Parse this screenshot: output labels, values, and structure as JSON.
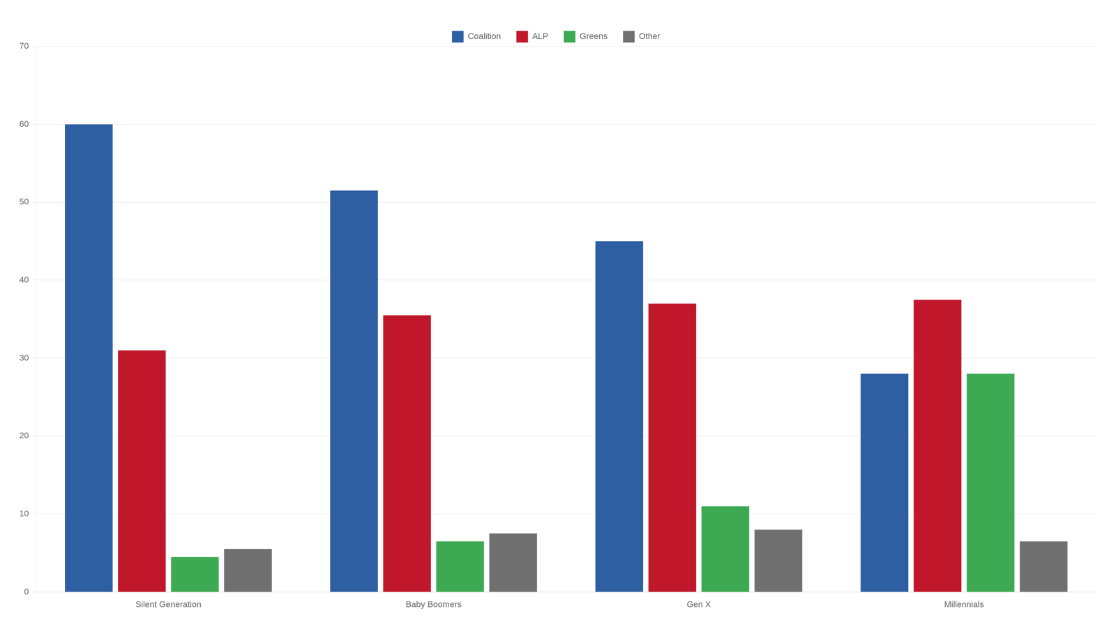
{
  "chart_data": {
    "type": "bar",
    "categories": [
      "Silent Generation",
      "Baby Boomers",
      "Gen X",
      "Millennials"
    ],
    "series": [
      {
        "name": "Coalition",
        "color": "#2E5FA3",
        "values": [
          60.0,
          51.5,
          45.0,
          28.0
        ]
      },
      {
        "name": "ALP",
        "color": "#C0182A",
        "values": [
          31.0,
          35.5,
          37.0,
          37.5
        ]
      },
      {
        "name": "Greens",
        "color": "#3DAA53",
        "values": [
          4.5,
          6.5,
          11.0,
          28.0
        ]
      },
      {
        "name": "Other",
        "color": "#707070",
        "values": [
          5.5,
          7.5,
          8.0,
          6.5
        ]
      }
    ],
    "ylim": [
      0,
      70
    ],
    "yticks": [
      0,
      10,
      20,
      30,
      40,
      50,
      60,
      70
    ],
    "grid": true,
    "legend": "top"
  }
}
